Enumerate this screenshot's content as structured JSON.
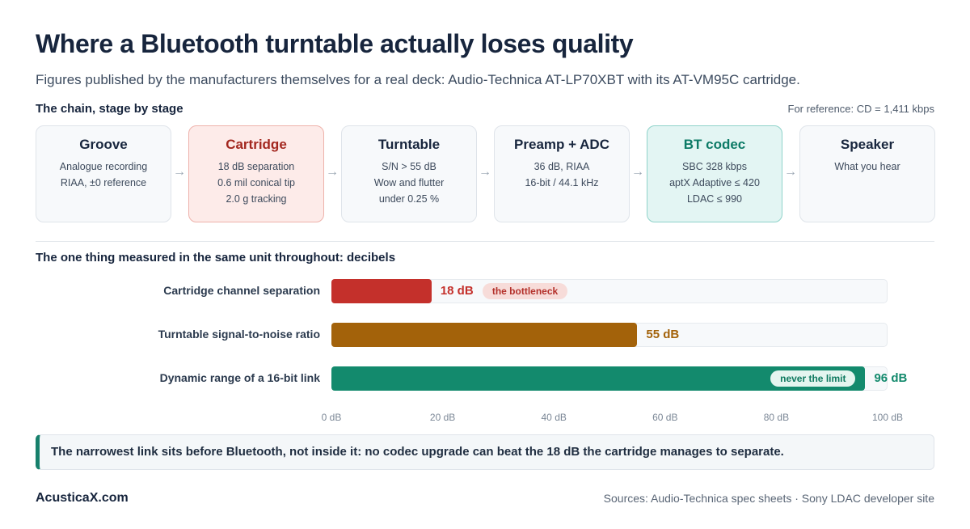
{
  "title": "Where a Bluetooth turntable actually loses quality",
  "subtitle": "Figures published by the manufacturers themselves for a real deck: Audio-Technica AT-LP70XBT with its AT-VM95C cartridge.",
  "chain": {
    "heading": "The chain, stage by stage",
    "reference_note": "For reference: CD = 1,411 kbps",
    "arrow_glyph": "→",
    "stages": [
      {
        "name": "Groove",
        "lines": [
          "Analogue recording",
          "RIAA, ±0 reference"
        ],
        "highlight": "none"
      },
      {
        "name": "Cartridge",
        "lines": [
          "18 dB separation",
          "0.6 mil conical tip",
          "2.0 g tracking"
        ],
        "highlight": "red"
      },
      {
        "name": "Turntable",
        "lines": [
          "S/N > 55 dB",
          "Wow and flutter",
          "under 0.25 %"
        ],
        "highlight": "none"
      },
      {
        "name": "Preamp + ADC",
        "lines": [
          "36 dB, RIAA",
          "16-bit / 44.1 kHz"
        ],
        "highlight": "none"
      },
      {
        "name": "BT codec",
        "lines": [
          "SBC 328 kbps",
          "aptX Adaptive ≤ 420",
          "LDAC ≤ 990"
        ],
        "highlight": "teal"
      },
      {
        "name": "Speaker",
        "lines": [
          "What you hear"
        ],
        "highlight": "none"
      }
    ]
  },
  "measure_heading": "The one thing measured in the same unit throughout: decibels",
  "chart_data": {
    "type": "bar",
    "orientation": "horizontal",
    "categories": [
      "Cartridge channel separation",
      "Turntable signal-to-noise ratio",
      "Dynamic range of a 16-bit link"
    ],
    "values": [
      18,
      55,
      96
    ],
    "value_labels": [
      "18 dB",
      "55 dB",
      "96 dB"
    ],
    "colors": [
      "#c4302b",
      "#a3620a",
      "#138a6d"
    ],
    "annotations": [
      "the bottleneck",
      "",
      "never the limit"
    ],
    "xlim": [
      0,
      100
    ],
    "x_ticks": [
      0,
      20,
      40,
      60,
      80,
      100
    ],
    "x_tick_labels": [
      "0 dB",
      "20 dB",
      "40 dB",
      "60 dB",
      "80 dB",
      "100 dB"
    ],
    "grid": false
  },
  "callout": "The narrowest link sits before Bluetooth, not inside it: no codec upgrade can beat the 18 dB the cartridge manages to separate.",
  "footer": {
    "brand": "AcusticaX.com",
    "sources": "Sources: Audio-Technica spec sheets · Sony LDAC developer site"
  }
}
